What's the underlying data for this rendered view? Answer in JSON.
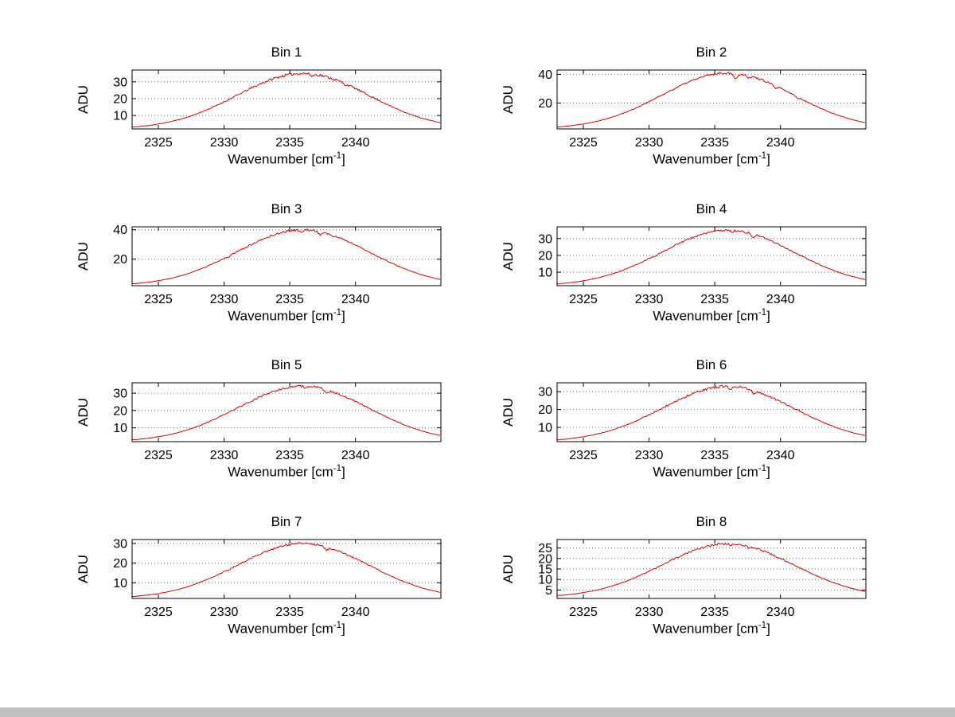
{
  "figure": {
    "background": "#ffffff"
  },
  "chart_data": {
    "type": "line",
    "layout": {
      "rows": 4,
      "cols": 2,
      "grid": "y-dotted",
      "legend": "none"
    },
    "colors": {
      "line": "#d40000",
      "grid": "#666666",
      "axis": "#000000"
    },
    "xlabel": {
      "pre": "Wavenumber [cm",
      "sup": "-1",
      "post": "]"
    },
    "ylabel": "ADU",
    "xlim": [
      2323,
      2346.5
    ],
    "xticks": [
      2325,
      2330,
      2335,
      2340
    ],
    "x": [
      2323,
      2324,
      2325,
      2326,
      2327,
      2328,
      2329,
      2330,
      2331,
      2332,
      2333,
      2334,
      2335,
      2336,
      2337,
      2338,
      2339,
      2340,
      2341,
      2342,
      2343,
      2344,
      2345,
      2346,
      2347
    ],
    "bins": [
      {
        "title": "Bin 1",
        "seed": 11,
        "noise": 0.8,
        "ylim": [
          2,
          37
        ],
        "yticks": [
          10,
          20,
          30
        ],
        "y": [
          3.1,
          3.8,
          4.9,
          6.5,
          8.5,
          11.2,
          14.4,
          18.1,
          22.0,
          26.0,
          29.6,
          32.5,
          34.3,
          35.0,
          34.3,
          32.5,
          29.6,
          26.0,
          22.0,
          18.1,
          14.4,
          11.2,
          8.5,
          6.5,
          4.9
        ],
        "dips": [
          {
            "x": 2336.7,
            "depth": 1.2,
            "width": 0.2
          },
          {
            "x": 2339.2,
            "depth": 0.8,
            "width": 0.15
          }
        ]
      },
      {
        "title": "Bin 2",
        "seed": 22,
        "noise": 0.7,
        "ylim": [
          2,
          43
        ],
        "yticks": [
          20,
          40
        ],
        "y": [
          3.3,
          4.2,
          5.5,
          7.3,
          9.7,
          12.8,
          16.6,
          21.0,
          25.7,
          30.3,
          34.6,
          38.0,
          40.2,
          41.0,
          40.2,
          38.0,
          34.6,
          30.3,
          25.7,
          21.0,
          16.6,
          12.8,
          9.7,
          7.3,
          5.5
        ],
        "dips": [
          {
            "x": 2336.6,
            "depth": 3.5,
            "width": 0.22
          },
          {
            "x": 2337.6,
            "depth": 1.5,
            "width": 0.15
          },
          {
            "x": 2339.6,
            "depth": 1.8,
            "width": 0.18
          },
          {
            "x": 2341.3,
            "depth": 1.2,
            "width": 0.15
          }
        ]
      },
      {
        "title": "Bin 3",
        "seed": 33,
        "noise": 0.7,
        "ylim": [
          2,
          42
        ],
        "yticks": [
          20,
          40
        ],
        "y": [
          3.3,
          4.1,
          5.4,
          7.1,
          9.5,
          12.6,
          16.3,
          20.5,
          25.1,
          29.6,
          33.7,
          37.1,
          39.2,
          40.0,
          39.2,
          37.1,
          33.7,
          29.6,
          25.1,
          20.5,
          16.3,
          12.6,
          9.5,
          7.1,
          5.4
        ],
        "dips": [
          {
            "x": 2335.9,
            "depth": 1.5,
            "width": 0.2
          },
          {
            "x": 2337.3,
            "depth": 2.0,
            "width": 0.2
          },
          {
            "x": 2338.3,
            "depth": 1.2,
            "width": 0.15
          },
          {
            "x": 2330.4,
            "depth": 0.8,
            "width": 0.12
          }
        ]
      },
      {
        "title": "Bin 4",
        "seed": 44,
        "noise": 0.6,
        "ylim": [
          2,
          37
        ],
        "yticks": [
          10,
          20,
          30
        ],
        "y": [
          3.1,
          3.8,
          4.9,
          6.5,
          8.5,
          11.2,
          14.4,
          18.1,
          22.0,
          26.0,
          29.6,
          32.5,
          34.3,
          35.0,
          34.3,
          32.5,
          29.6,
          26.0,
          22.0,
          18.1,
          14.4,
          11.2,
          8.5,
          6.5,
          4.9
        ],
        "dips": [
          {
            "x": 2337.9,
            "depth": 1.8,
            "width": 0.2
          },
          {
            "x": 2336.3,
            "depth": 1.0,
            "width": 0.15
          },
          {
            "x": 2330.5,
            "depth": 0.7,
            "width": 0.12
          }
        ]
      },
      {
        "title": "Bin 5",
        "seed": 55,
        "noise": 0.6,
        "ylim": [
          2,
          36
        ],
        "yticks": [
          10,
          20,
          30
        ],
        "y": [
          3.1,
          3.8,
          4.9,
          6.3,
          8.3,
          10.9,
          14.0,
          17.6,
          21.4,
          25.2,
          28.7,
          31.5,
          33.4,
          34.0,
          33.4,
          31.5,
          28.7,
          25.2,
          21.4,
          17.6,
          14.0,
          10.9,
          8.3,
          6.3,
          4.9
        ],
        "dips": [
          {
            "x": 2337.8,
            "depth": 1.8,
            "width": 0.2
          },
          {
            "x": 2336.2,
            "depth": 0.9,
            "width": 0.15
          }
        ]
      },
      {
        "title": "Bin 6",
        "seed": 66,
        "noise": 0.7,
        "ylim": [
          2,
          35
        ],
        "yticks": [
          10,
          20,
          30
        ],
        "y": [
          3.1,
          3.7,
          4.8,
          6.2,
          8.1,
          10.6,
          13.6,
          17.1,
          20.8,
          24.5,
          27.9,
          30.6,
          32.4,
          33.0,
          32.4,
          30.6,
          27.9,
          24.5,
          20.8,
          17.1,
          13.6,
          10.6,
          8.1,
          6.2,
          4.8
        ],
        "dips": [
          {
            "x": 2336.2,
            "depth": 1.4,
            "width": 0.18
          },
          {
            "x": 2338.0,
            "depth": 1.6,
            "width": 0.2
          }
        ]
      },
      {
        "title": "Bin 7",
        "seed": 77,
        "noise": 0.5,
        "ylim": [
          2,
          32
        ],
        "yticks": [
          10,
          20,
          30
        ],
        "y": [
          3.0,
          3.6,
          4.5,
          5.8,
          7.5,
          9.8,
          12.5,
          15.6,
          19.0,
          22.3,
          25.4,
          27.8,
          29.4,
          30.0,
          29.4,
          27.8,
          25.4,
          22.3,
          19.0,
          15.6,
          12.5,
          9.8,
          7.5,
          5.8,
          4.5
        ],
        "dips": [
          {
            "x": 2337.8,
            "depth": 1.6,
            "width": 0.2
          },
          {
            "x": 2330.4,
            "depth": 0.6,
            "width": 0.12
          }
        ]
      },
      {
        "title": "Bin 8",
        "seed": 88,
        "noise": 0.5,
        "ylim": [
          1,
          29
        ],
        "yticks": [
          5,
          10,
          15,
          20,
          25
        ],
        "y": [
          2.4,
          2.9,
          3.8,
          4.9,
          6.6,
          8.6,
          11.1,
          13.9,
          17.0,
          20.0,
          22.8,
          25.0,
          26.5,
          27.0,
          26.5,
          25.0,
          22.8,
          20.0,
          17.0,
          13.9,
          11.1,
          8.6,
          6.6,
          4.9,
          3.8
        ],
        "dips": [
          {
            "x": 2337.6,
            "depth": 1.0,
            "width": 0.15
          },
          {
            "x": 2336.2,
            "depth": 0.8,
            "width": 0.15
          }
        ]
      }
    ]
  }
}
